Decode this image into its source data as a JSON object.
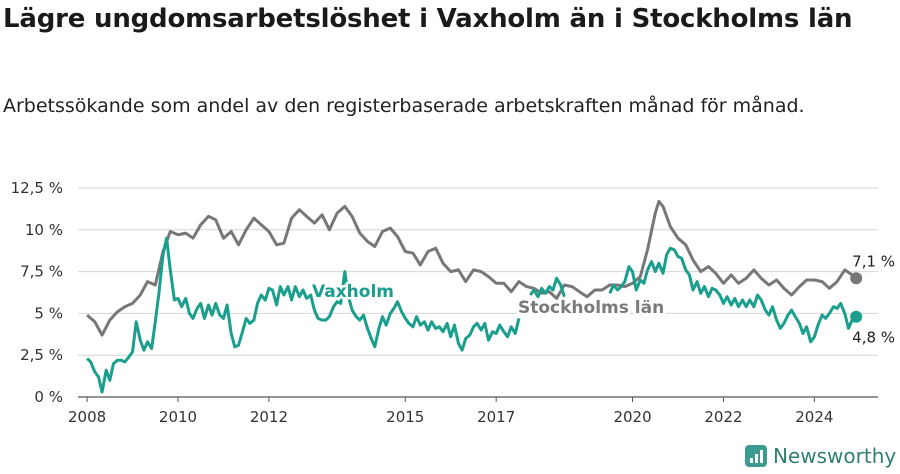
{
  "title": "Lägre ungdomsarbetslöshet i Vaxholm än i Stockholms län",
  "subtitle": "Arbetssökande som andel av den registerbaserade arbetskraften månad för månad.",
  "brand": {
    "name": "Newsworthy",
    "icon": "bar-chart-icon"
  },
  "chart_data": {
    "type": "line",
    "ylim": [
      0,
      12.5
    ],
    "yticks": [
      {
        "value": 0,
        "label": "0 %"
      },
      {
        "value": 2.5,
        "label": "2,5 %"
      },
      {
        "value": 5,
        "label": "5 %"
      },
      {
        "value": 7.5,
        "label": "7,5 %"
      },
      {
        "value": 10,
        "label": "10 %"
      },
      {
        "value": 12.5,
        "label": "12,5 %"
      }
    ],
    "xlim": [
      2007.8,
      2025.4
    ],
    "xticks": [
      {
        "value": 2008,
        "label": "2008"
      },
      {
        "value": 2010,
        "label": "2010"
      },
      {
        "value": 2012,
        "label": "2012"
      },
      {
        "value": 2015,
        "label": "2015"
      },
      {
        "value": 2017,
        "label": "2017"
      },
      {
        "value": 2020,
        "label": "2020"
      },
      {
        "value": 2022,
        "label": "2022"
      },
      {
        "value": 2024,
        "label": "2024"
      }
    ],
    "grid": true,
    "series": [
      {
        "name": "Stockholms län",
        "color": "#777777",
        "end_label": "7,1 %",
        "points": [
          [
            2008.0,
            4.9
          ],
          [
            2008.17,
            4.5
          ],
          [
            2008.33,
            3.7
          ],
          [
            2008.5,
            4.6
          ],
          [
            2008.67,
            5.1
          ],
          [
            2008.83,
            5.4
          ],
          [
            2009.0,
            5.6
          ],
          [
            2009.17,
            6.1
          ],
          [
            2009.33,
            6.9
          ],
          [
            2009.5,
            6.7
          ],
          [
            2009.67,
            8.7
          ],
          [
            2009.83,
            9.9
          ],
          [
            2010.0,
            9.7
          ],
          [
            2010.17,
            9.8
          ],
          [
            2010.33,
            9.5
          ],
          [
            2010.5,
            10.3
          ],
          [
            2010.67,
            10.8
          ],
          [
            2010.83,
            10.6
          ],
          [
            2011.0,
            9.5
          ],
          [
            2011.17,
            9.9
          ],
          [
            2011.33,
            9.1
          ],
          [
            2011.5,
            10.0
          ],
          [
            2011.67,
            10.7
          ],
          [
            2011.83,
            10.3
          ],
          [
            2012.0,
            9.9
          ],
          [
            2012.17,
            9.1
          ],
          [
            2012.33,
            9.2
          ],
          [
            2012.5,
            10.7
          ],
          [
            2012.67,
            11.2
          ],
          [
            2012.83,
            10.8
          ],
          [
            2013.0,
            10.4
          ],
          [
            2013.17,
            10.9
          ],
          [
            2013.33,
            10.0
          ],
          [
            2013.5,
            11.0
          ],
          [
            2013.67,
            11.4
          ],
          [
            2013.83,
            10.8
          ],
          [
            2014.0,
            9.8
          ],
          [
            2014.17,
            9.3
          ],
          [
            2014.33,
            9.0
          ],
          [
            2014.5,
            9.9
          ],
          [
            2014.67,
            10.1
          ],
          [
            2014.83,
            9.6
          ],
          [
            2015.0,
            8.7
          ],
          [
            2015.17,
            8.6
          ],
          [
            2015.33,
            7.9
          ],
          [
            2015.5,
            8.7
          ],
          [
            2015.67,
            8.9
          ],
          [
            2015.83,
            8.0
          ],
          [
            2016.0,
            7.5
          ],
          [
            2016.17,
            7.6
          ],
          [
            2016.33,
            6.9
          ],
          [
            2016.5,
            7.6
          ],
          [
            2016.67,
            7.5
          ],
          [
            2016.83,
            7.2
          ],
          [
            2017.0,
            6.8
          ],
          [
            2017.17,
            6.8
          ],
          [
            2017.33,
            6.3
          ],
          [
            2017.5,
            6.9
          ],
          [
            2017.67,
            6.6
          ],
          [
            2017.83,
            6.5
          ],
          [
            2018.0,
            6.2
          ],
          [
            2018.17,
            6.3
          ],
          [
            2018.33,
            5.9
          ],
          [
            2018.5,
            6.7
          ],
          [
            2018.67,
            6.6
          ],
          [
            2018.83,
            6.3
          ],
          [
            2019.0,
            6.0
          ],
          [
            2019.17,
            6.4
          ],
          [
            2019.33,
            6.4
          ],
          [
            2019.5,
            6.7
          ],
          [
            2019.67,
            6.7
          ],
          [
            2019.83,
            6.6
          ],
          [
            2020.0,
            6.8
          ],
          [
            2020.17,
            7.2
          ],
          [
            2020.33,
            8.8
          ],
          [
            2020.5,
            11.0
          ],
          [
            2020.58,
            11.7
          ],
          [
            2020.67,
            11.4
          ],
          [
            2020.83,
            10.2
          ],
          [
            2021.0,
            9.5
          ],
          [
            2021.17,
            9.1
          ],
          [
            2021.33,
            8.2
          ],
          [
            2021.5,
            7.5
          ],
          [
            2021.67,
            7.8
          ],
          [
            2021.83,
            7.4
          ],
          [
            2022.0,
            6.8
          ],
          [
            2022.17,
            7.3
          ],
          [
            2022.33,
            6.8
          ],
          [
            2022.5,
            7.1
          ],
          [
            2022.67,
            7.6
          ],
          [
            2022.83,
            7.1
          ],
          [
            2023.0,
            6.7
          ],
          [
            2023.17,
            7.0
          ],
          [
            2023.33,
            6.5
          ],
          [
            2023.5,
            6.1
          ],
          [
            2023.67,
            6.6
          ],
          [
            2023.83,
            7.0
          ],
          [
            2024.0,
            7.0
          ],
          [
            2024.17,
            6.9
          ],
          [
            2024.33,
            6.5
          ],
          [
            2024.5,
            6.9
          ],
          [
            2024.67,
            7.6
          ],
          [
            2024.83,
            7.3
          ],
          [
            2024.92,
            7.1
          ]
        ]
      },
      {
        "name": "Vaxholm",
        "color": "#1a9e8d",
        "end_label": "4,8 %",
        "points": [
          [
            2008.0,
            2.3
          ],
          [
            2008.08,
            2.1
          ],
          [
            2008.17,
            1.5
          ],
          [
            2008.25,
            1.2
          ],
          [
            2008.33,
            0.3
          ],
          [
            2008.42,
            1.6
          ],
          [
            2008.5,
            1.0
          ],
          [
            2008.58,
            2.0
          ],
          [
            2008.67,
            2.2
          ],
          [
            2008.75,
            2.2
          ],
          [
            2008.83,
            2.1
          ],
          [
            2008.92,
            2.4
          ],
          [
            2009.0,
            2.7
          ],
          [
            2009.08,
            4.5
          ],
          [
            2009.17,
            3.4
          ],
          [
            2009.25,
            2.8
          ],
          [
            2009.33,
            3.3
          ],
          [
            2009.42,
            2.9
          ],
          [
            2009.5,
            4.5
          ],
          [
            2009.58,
            6.2
          ],
          [
            2009.67,
            8.5
          ],
          [
            2009.75,
            9.5
          ],
          [
            2009.83,
            7.6
          ],
          [
            2009.92,
            5.8
          ],
          [
            2010.0,
            5.9
          ],
          [
            2010.08,
            5.4
          ],
          [
            2010.17,
            5.9
          ],
          [
            2010.25,
            5.0
          ],
          [
            2010.33,
            4.7
          ],
          [
            2010.42,
            5.3
          ],
          [
            2010.5,
            5.6
          ],
          [
            2010.58,
            4.7
          ],
          [
            2010.67,
            5.5
          ],
          [
            2010.75,
            4.9
          ],
          [
            2010.83,
            5.6
          ],
          [
            2010.92,
            4.9
          ],
          [
            2011.0,
            4.7
          ],
          [
            2011.08,
            5.5
          ],
          [
            2011.17,
            3.8
          ],
          [
            2011.25,
            3.0
          ],
          [
            2011.33,
            3.1
          ],
          [
            2011.42,
            3.9
          ],
          [
            2011.5,
            4.7
          ],
          [
            2011.58,
            4.4
          ],
          [
            2011.67,
            4.6
          ],
          [
            2011.75,
            5.6
          ],
          [
            2011.83,
            6.1
          ],
          [
            2011.92,
            5.8
          ],
          [
            2012.0,
            6.5
          ],
          [
            2012.08,
            6.4
          ],
          [
            2012.17,
            5.5
          ],
          [
            2012.25,
            6.6
          ],
          [
            2012.33,
            6.1
          ],
          [
            2012.42,
            6.6
          ],
          [
            2012.5,
            5.8
          ],
          [
            2012.58,
            6.6
          ],
          [
            2012.67,
            6.0
          ],
          [
            2012.75,
            6.4
          ],
          [
            2012.83,
            5.9
          ],
          [
            2012.92,
            6.1
          ],
          [
            2013.0,
            5.2
          ],
          [
            2013.08,
            4.7
          ],
          [
            2013.17,
            4.6
          ],
          [
            2013.25,
            4.6
          ],
          [
            2013.33,
            4.8
          ],
          [
            2013.42,
            5.4
          ],
          [
            2013.5,
            5.7
          ],
          [
            2013.58,
            5.6
          ],
          [
            2013.67,
            7.5
          ],
          [
            2013.75,
            6.0
          ],
          [
            2013.83,
            5.2
          ],
          [
            2013.92,
            4.8
          ],
          [
            2014.0,
            4.6
          ],
          [
            2014.08,
            4.9
          ],
          [
            2014.17,
            4.1
          ],
          [
            2014.25,
            3.5
          ],
          [
            2014.33,
            3.0
          ],
          [
            2014.42,
            4.1
          ],
          [
            2014.5,
            4.8
          ],
          [
            2014.58,
            4.3
          ],
          [
            2014.67,
            5.0
          ],
          [
            2014.75,
            5.3
          ],
          [
            2014.83,
            5.7
          ],
          [
            2014.92,
            5.1
          ],
          [
            2015.0,
            4.7
          ],
          [
            2015.08,
            4.4
          ],
          [
            2015.17,
            4.2
          ],
          [
            2015.25,
            4.8
          ],
          [
            2015.33,
            4.3
          ],
          [
            2015.42,
            4.5
          ],
          [
            2015.5,
            4.0
          ],
          [
            2015.58,
            4.5
          ],
          [
            2015.67,
            4.1
          ],
          [
            2015.75,
            4.2
          ],
          [
            2015.83,
            3.9
          ],
          [
            2015.92,
            4.4
          ],
          [
            2016.0,
            3.6
          ],
          [
            2016.08,
            4.3
          ],
          [
            2016.17,
            3.2
          ],
          [
            2016.25,
            2.8
          ],
          [
            2016.33,
            3.5
          ],
          [
            2016.42,
            3.7
          ],
          [
            2016.5,
            4.2
          ],
          [
            2016.58,
            4.4
          ],
          [
            2016.67,
            4.0
          ],
          [
            2016.75,
            4.4
          ],
          [
            2016.83,
            3.4
          ],
          [
            2016.92,
            3.9
          ],
          [
            2017.0,
            3.8
          ],
          [
            2017.08,
            4.3
          ],
          [
            2017.17,
            3.9
          ],
          [
            2017.25,
            3.6
          ],
          [
            2017.33,
            4.2
          ],
          [
            2017.42,
            3.8
          ],
          [
            2017.5,
            4.7
          ]
        ],
        "points2": [
          [
            2017.75,
            6.1
          ],
          [
            2017.83,
            6.4
          ],
          [
            2017.92,
            6.0
          ],
          [
            2018.0,
            6.5
          ],
          [
            2018.08,
            6.2
          ],
          [
            2018.17,
            6.6
          ],
          [
            2018.25,
            6.4
          ],
          [
            2018.33,
            7.1
          ],
          [
            2018.42,
            6.7
          ],
          [
            2018.5,
            6.0
          ]
        ],
        "points3": [
          [
            2019.5,
            6.2
          ],
          [
            2019.58,
            6.7
          ],
          [
            2019.67,
            6.4
          ],
          [
            2019.75,
            6.6
          ],
          [
            2019.83,
            6.9
          ],
          [
            2019.92,
            7.8
          ],
          [
            2020.0,
            7.5
          ],
          [
            2020.08,
            6.4
          ],
          [
            2020.17,
            7.0
          ],
          [
            2020.25,
            6.8
          ],
          [
            2020.33,
            7.6
          ],
          [
            2020.42,
            8.1
          ],
          [
            2020.5,
            7.5
          ],
          [
            2020.58,
            8.0
          ],
          [
            2020.67,
            7.4
          ],
          [
            2020.75,
            8.5
          ],
          [
            2020.83,
            8.9
          ],
          [
            2020.92,
            8.8
          ],
          [
            2021.0,
            8.4
          ],
          [
            2021.08,
            8.3
          ],
          [
            2021.17,
            7.6
          ],
          [
            2021.25,
            7.3
          ],
          [
            2021.33,
            6.4
          ],
          [
            2021.42,
            6.9
          ],
          [
            2021.5,
            6.2
          ],
          [
            2021.58,
            6.6
          ],
          [
            2021.67,
            6.0
          ],
          [
            2021.75,
            6.5
          ],
          [
            2021.83,
            6.4
          ],
          [
            2021.92,
            6.1
          ],
          [
            2022.0,
            5.6
          ],
          [
            2022.08,
            6.0
          ],
          [
            2022.17,
            5.5
          ],
          [
            2022.25,
            5.9
          ],
          [
            2022.33,
            5.4
          ],
          [
            2022.42,
            5.8
          ],
          [
            2022.5,
            5.4
          ],
          [
            2022.58,
            5.8
          ],
          [
            2022.67,
            5.4
          ],
          [
            2022.75,
            6.1
          ],
          [
            2022.83,
            5.8
          ],
          [
            2022.92,
            5.2
          ],
          [
            2023.0,
            4.9
          ],
          [
            2023.08,
            5.4
          ],
          [
            2023.17,
            4.6
          ],
          [
            2023.25,
            4.1
          ],
          [
            2023.33,
            4.4
          ],
          [
            2023.42,
            4.9
          ],
          [
            2023.5,
            5.2
          ],
          [
            2023.58,
            4.8
          ],
          [
            2023.67,
            4.4
          ],
          [
            2023.75,
            3.8
          ],
          [
            2023.83,
            4.2
          ],
          [
            2023.92,
            3.3
          ],
          [
            2024.0,
            3.6
          ],
          [
            2024.08,
            4.3
          ],
          [
            2024.17,
            4.9
          ],
          [
            2024.25,
            4.7
          ],
          [
            2024.33,
            5.0
          ],
          [
            2024.42,
            5.4
          ],
          [
            2024.5,
            5.3
          ],
          [
            2024.58,
            5.6
          ],
          [
            2024.67,
            5.0
          ],
          [
            2024.75,
            4.1
          ],
          [
            2024.83,
            4.6
          ],
          [
            2024.92,
            4.8
          ]
        ]
      }
    ]
  }
}
